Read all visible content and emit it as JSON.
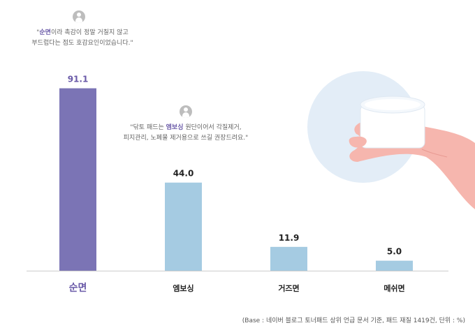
{
  "chart_data": {
    "type": "bar",
    "title": "",
    "xlabel": "",
    "ylabel": "",
    "categories": [
      "순면",
      "엠보싱",
      "거즈면",
      "메쉬면"
    ],
    "values": [
      91.1,
      44.0,
      11.9,
      5.0
    ],
    "value_labels": [
      "91.1",
      "44.0",
      "11.9",
      "5.0"
    ],
    "ylim": [
      0,
      100
    ],
    "grid": false,
    "colors": {
      "highlight": "#7b74b5",
      "bar": "#a5cbe2",
      "highlight_label": "#6a5aa8",
      "baseline": "#cccccc"
    },
    "highlight_index": 0
  },
  "quotes": [
    {
      "emphasis": "순면",
      "line1_rest": "이라 촉감이 정말 거칠지 않고",
      "line2": "부드럽다는 점도 호감요인이었습니다.\""
    },
    {
      "prefix": "\"닦토 패드는 ",
      "emphasis": "엠보싱",
      "line1_rest": " 원단이어서 각질제거,",
      "line2": "피지관리, 노폐물 제거용으로 쓰길 권장드려요.\""
    }
  ],
  "source_note": "(Base : 네이버 블로그 토너패드 상위 언급 문서 기준, 패드 재질 1419건, 단위 : %)",
  "icons": [
    "user-icon",
    "hand-holding-jar-illustration"
  ]
}
